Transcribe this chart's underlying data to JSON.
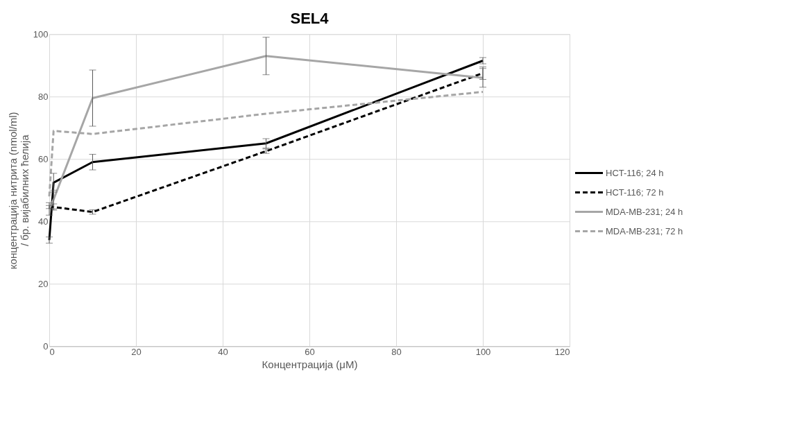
{
  "chart_data": {
    "type": "line",
    "title": "SEL4",
    "xlabel": "Концентрација (μM)",
    "ylabel": "концентрација нитрита (nmol/ml) / бр. вијабилних ћелија",
    "x": [
      0,
      1,
      10,
      50,
      100
    ],
    "xlim": [
      0,
      120
    ],
    "xticks": [
      0,
      20,
      40,
      60,
      80,
      100,
      120
    ],
    "ylim": [
      0,
      100
    ],
    "yticks": [
      0,
      20,
      40,
      60,
      80,
      100
    ],
    "grid": true,
    "legend": "right",
    "marker": "none",
    "series": [
      {
        "name": "HCT-116; 24 h",
        "color": "#000000",
        "line_style": "solid",
        "values": [
          34,
          52.4,
          59,
          65,
          91.5
        ],
        "errors": [
          1,
          3,
          2.5,
          1.5,
          1
        ]
      },
      {
        "name": "HCT-116; 72 h",
        "color": "#000000",
        "line_style": "dashed",
        "values": [
          44.6,
          44.6,
          43,
          62.5,
          87.5
        ],
        "errors": [
          0.5,
          1,
          0.7,
          0.7,
          2
        ]
      },
      {
        "name": "MDA-MB-231; 24 h",
        "color": "#a6a6a6",
        "line_style": "solid",
        "values": [
          44,
          47,
          79.5,
          93,
          86
        ],
        "errors": [
          2,
          3,
          9,
          6,
          3
        ]
      },
      {
        "name": "MDA-MB-231; 72 h",
        "color": "#a6a6a6",
        "line_style": "dashed",
        "values": [
          48,
          69,
          68,
          74.5,
          81.5
        ],
        "errors": [
          null,
          null,
          null,
          null,
          null
        ]
      }
    ]
  }
}
